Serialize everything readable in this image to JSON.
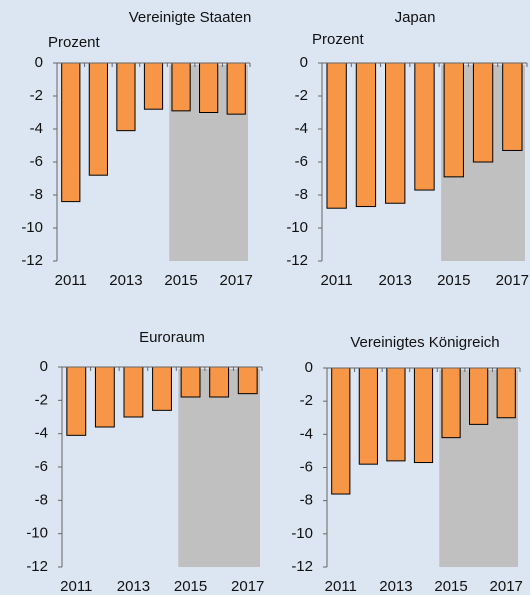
{
  "chart_data": [
    {
      "type": "bar",
      "title": "Vereinigte Staaten",
      "y_label": "Prozent",
      "categories": [
        "2011",
        null,
        "2013",
        null,
        "2015",
        null,
        "2017"
      ],
      "values": [
        -8.4,
        -6.8,
        -4.1,
        -2.8,
        -2.9,
        -3.0,
        -3.1
      ],
      "color": "#f79646",
      "ylim": [
        -12,
        0
      ],
      "yticks": [
        0,
        -2,
        -4,
        -6,
        -8,
        -10,
        -12
      ]
    },
    {
      "type": "bar",
      "title": "Japan",
      "y_label": "Prozent",
      "categories": [
        "2011",
        null,
        "2013",
        null,
        "2015",
        null,
        "2017"
      ],
      "values": [
        -8.8,
        -8.7,
        -8.5,
        -7.7,
        -6.9,
        -6.0,
        -5.3
      ],
      "color": "#f79646",
      "ylim": [
        -12,
        0
      ],
      "yticks": [
        0,
        -2,
        -4,
        -6,
        -8,
        -10,
        -12
      ]
    },
    {
      "type": "bar",
      "title": "Euroraum",
      "categories": [
        "2011",
        null,
        "2013",
        null,
        "2015",
        null,
        "2017"
      ],
      "values": [
        -4.1,
        -3.6,
        -3.0,
        -2.6,
        -1.8,
        -1.8,
        -1.6
      ],
      "color": "#f79646",
      "ylim": [
        -12,
        0
      ],
      "yticks": [
        0,
        -2,
        -4,
        -6,
        -8,
        -10,
        -12
      ]
    },
    {
      "type": "bar",
      "title": "Vereinigtes Königreich",
      "categories": [
        "2011",
        null,
        "2013",
        null,
        "2015",
        null,
        "2017"
      ],
      "values": [
        -7.6,
        -5.8,
        -5.6,
        -5.7,
        -4.2,
        -3.4,
        -3.0
      ],
      "color": "#f79646",
      "ylim": [
        -12,
        0
      ],
      "yticks": [
        0,
        -2,
        -4,
        -6,
        -8,
        -10,
        -12
      ]
    }
  ]
}
